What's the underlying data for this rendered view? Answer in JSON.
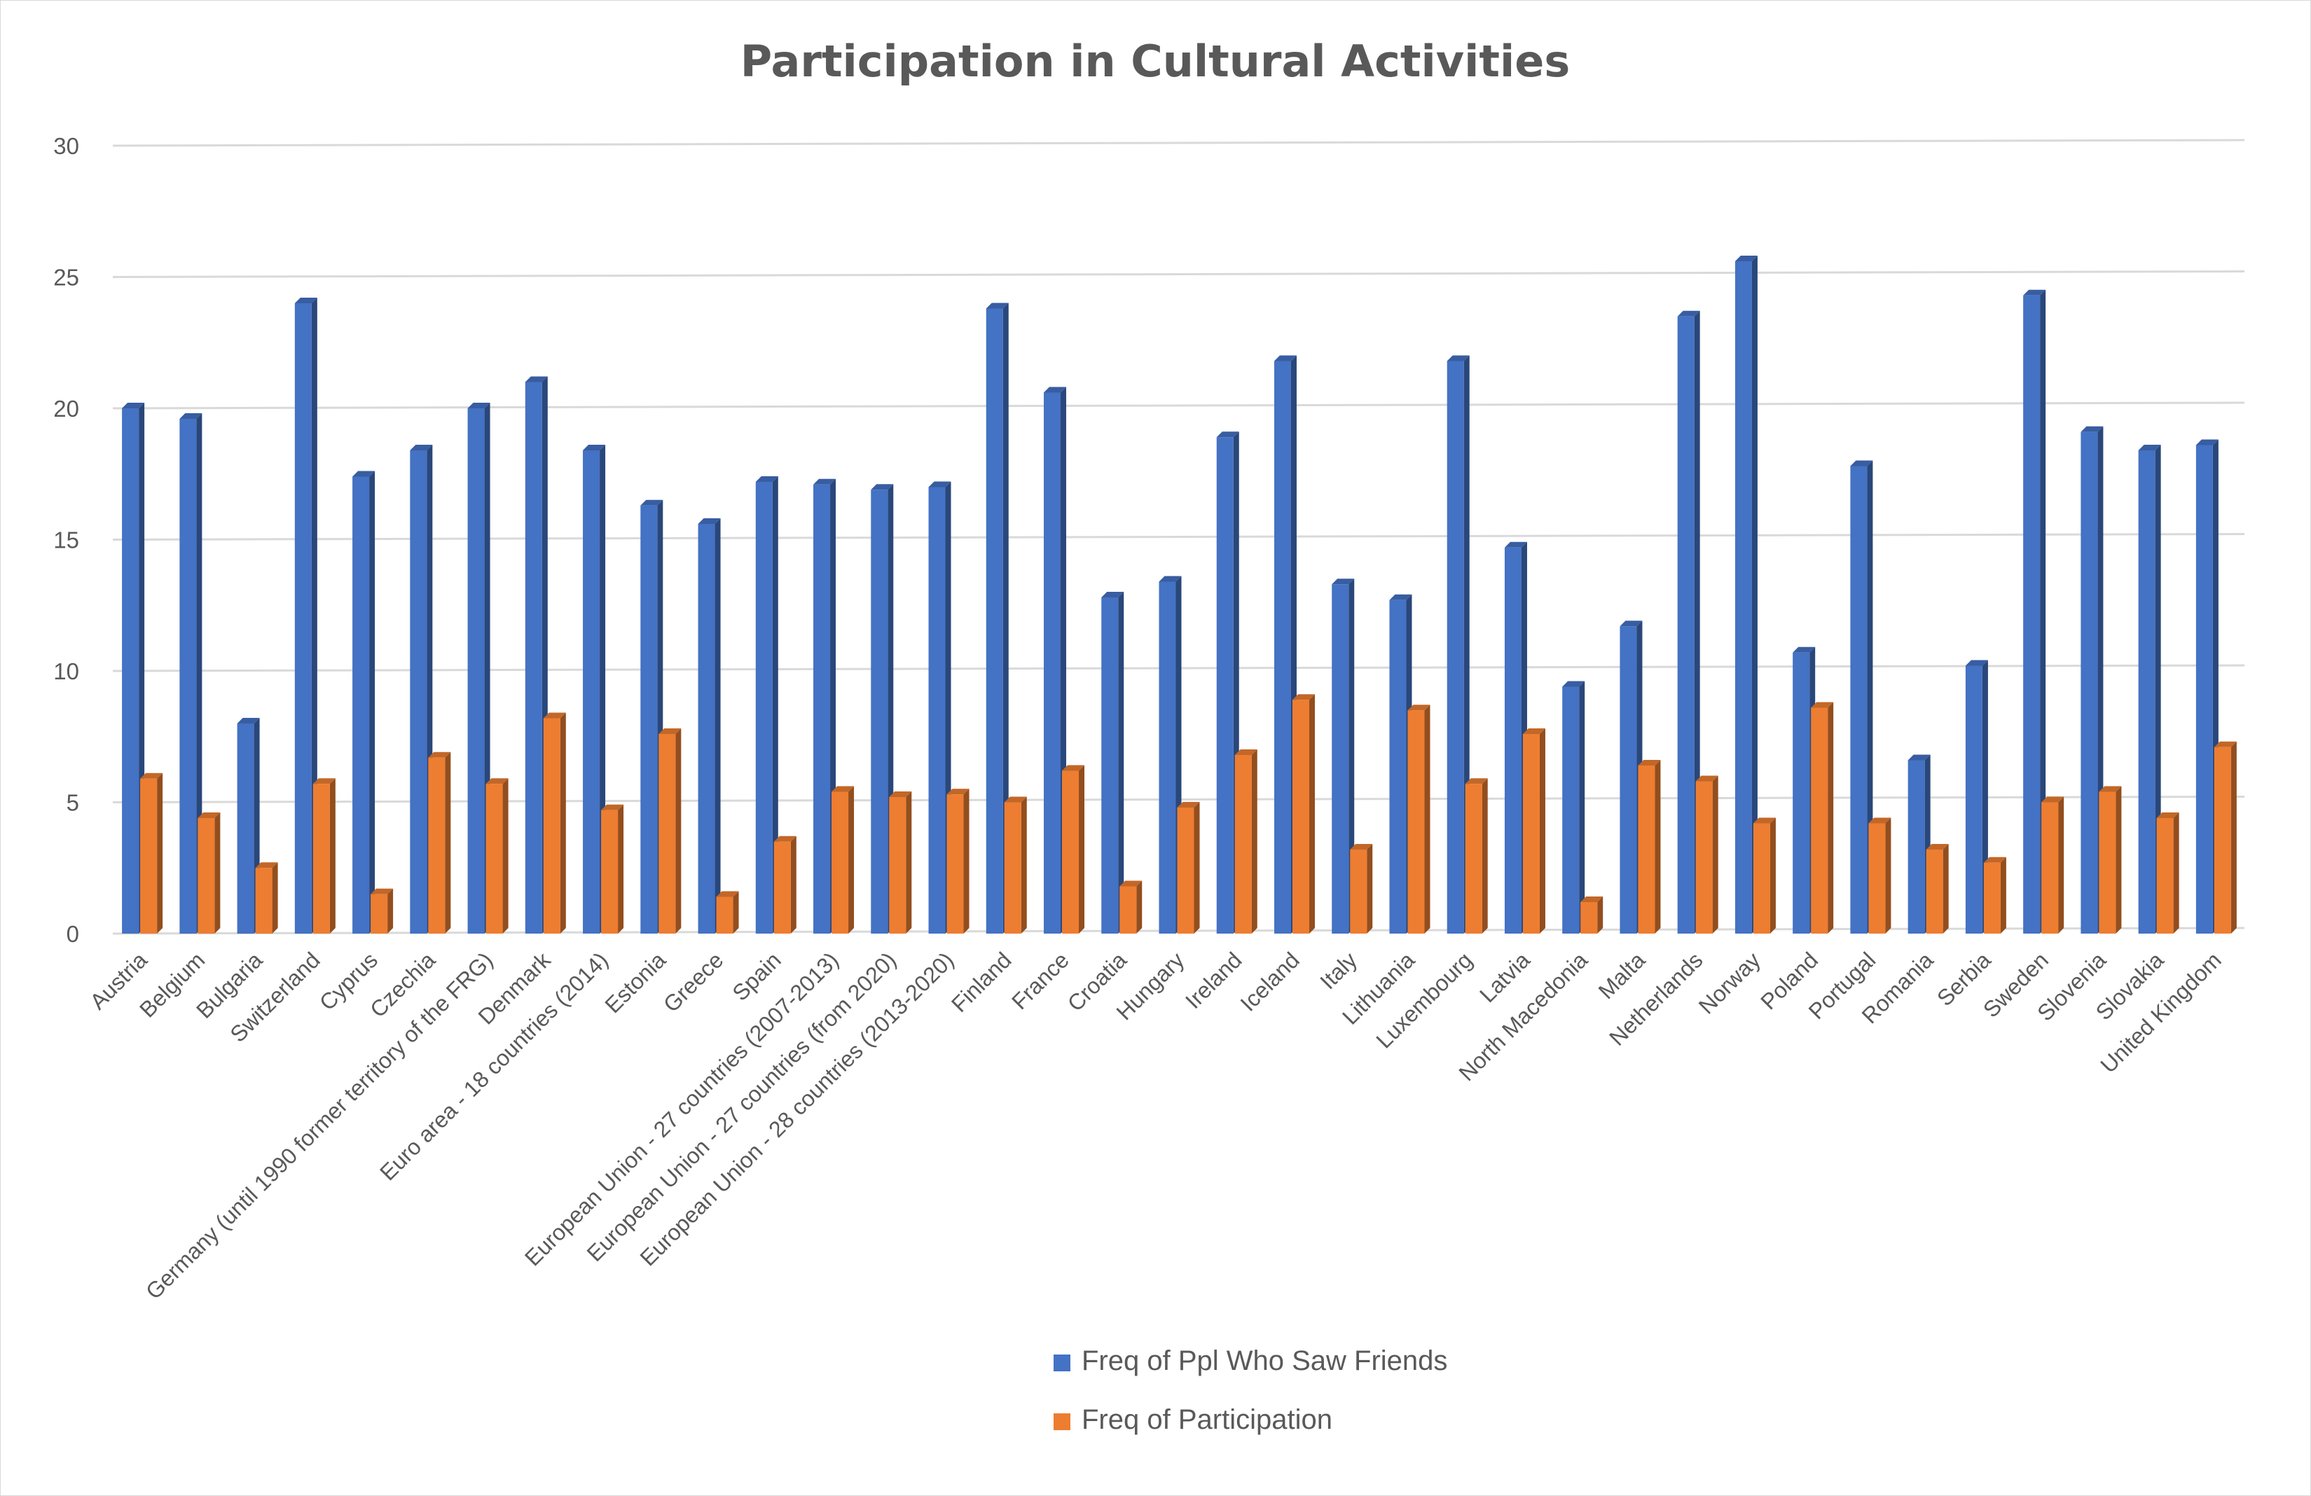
{
  "chart_data": {
    "type": "bar",
    "title": "Participation in Cultural Activities",
    "xlabel": "",
    "ylabel": "",
    "ylim": [
      0,
      30
    ],
    "yticks": [
      0,
      5,
      10,
      15,
      20,
      25,
      30
    ],
    "grid": true,
    "legend_position": "bottom",
    "categories": [
      "Austria",
      "Belgium",
      "Bulgaria",
      "Switzerland",
      "Cyprus",
      "Czechia",
      "Germany (until 1990 former territory of the FRG)",
      "Denmark",
      "Euro area - 18 countries (2014)",
      "Estonia",
      "Greece",
      "Spain",
      "European Union - 27 countries (2007-2013)",
      "European Union - 27 countries (from 2020)",
      "European Union - 28 countries (2013-2020)",
      "Finland",
      "France",
      "Croatia",
      "Hungary",
      "Ireland",
      "Iceland",
      "Italy",
      "Lithuania",
      "Luxembourg",
      "Latvia",
      "North Macedonia",
      "Malta",
      "Netherlands",
      "Norway",
      "Poland",
      "Portugal",
      "Romania",
      "Serbia",
      "Sweden",
      "Slovenia",
      "Slovakia",
      "United Kingdom"
    ],
    "series": [
      {
        "name": "Freq of Ppl Who Saw Friends",
        "color": "#4472c4",
        "values": [
          20.0,
          19.6,
          8.0,
          24.0,
          17.4,
          18.4,
          20.0,
          21.0,
          18.4,
          16.3,
          15.6,
          17.2,
          17.1,
          16.9,
          17.0,
          23.8,
          20.6,
          12.8,
          13.4,
          18.9,
          21.8,
          13.3,
          12.7,
          21.8,
          14.7,
          9.4,
          11.7,
          23.5,
          25.6,
          10.7,
          17.8,
          6.6,
          10.2,
          24.3,
          19.1,
          18.4,
          18.6
        ]
      },
      {
        "name": "Freq of Participation",
        "color": "#ed7d31",
        "values": [
          5.9,
          4.4,
          2.5,
          5.7,
          1.5,
          6.7,
          5.7,
          8.2,
          4.7,
          7.6,
          1.4,
          3.5,
          5.4,
          5.2,
          5.3,
          5.0,
          6.2,
          1.8,
          4.8,
          6.8,
          8.9,
          3.2,
          8.5,
          5.7,
          7.6,
          1.2,
          6.4,
          5.8,
          4.2,
          8.6,
          4.2,
          3.2,
          2.7,
          5.0,
          5.4,
          4.4,
          7.1
        ]
      }
    ]
  }
}
